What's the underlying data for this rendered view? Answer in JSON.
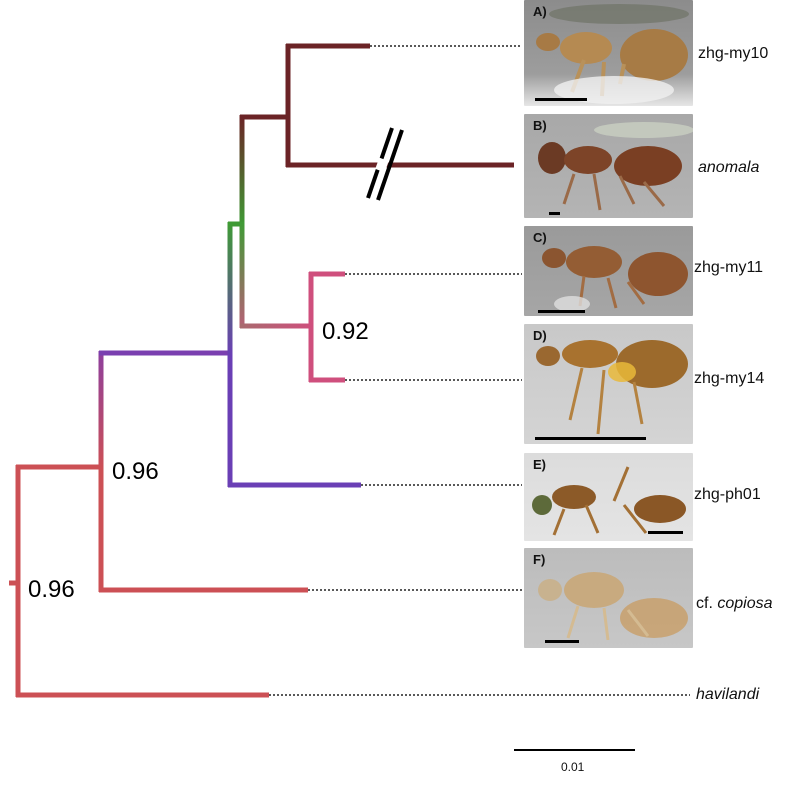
{
  "tips": [
    {
      "id": "zhg-my10",
      "label": "zhg-my10",
      "italic": false,
      "panel": "A)"
    },
    {
      "id": "anomala",
      "label": "anomala",
      "italic": true,
      "panel": "B)"
    },
    {
      "id": "zhg-my11",
      "label": "zhg-my11",
      "italic": false,
      "panel": "C)"
    },
    {
      "id": "zhg-my14",
      "label": "zhg-my14",
      "italic": false,
      "panel": "D)"
    },
    {
      "id": "zhg-ph01",
      "label": "zhg-ph01",
      "italic": false,
      "panel": "E)"
    },
    {
      "id": "copiosa",
      "label_prefix": "cf.",
      "label_italic": "copiosa",
      "panel": "F)"
    },
    {
      "id": "havilandi",
      "label": "havilandi",
      "italic": true
    }
  ],
  "support_values": {
    "root": "0.96",
    "inner": "0.96",
    "my11_my14": "0.92"
  },
  "scale": {
    "label": "0.01"
  },
  "colors": {
    "red": "#cc5055",
    "purple": "#6a3fb5",
    "green": "#3f9b35",
    "maroon": "#6b2326",
    "pink": "#cf4f7d"
  }
}
